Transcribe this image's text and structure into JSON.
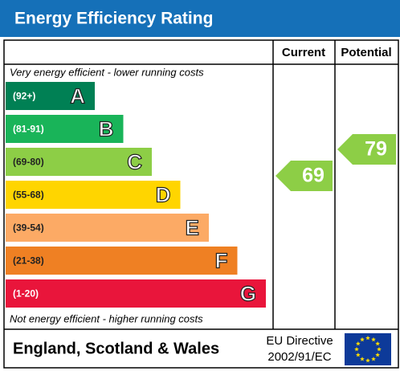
{
  "header": {
    "title": "Energy Efficiency Rating"
  },
  "columns": [
    "Current",
    "Potential"
  ],
  "top_note": "Very energy efficient - lower running costs",
  "bottom_note": "Not energy efficient - higher running costs",
  "bands": [
    {
      "range": "(92+)",
      "letter": "A"
    },
    {
      "range": "(81-91)",
      "letter": "B"
    },
    {
      "range": "(69-80)",
      "letter": "C"
    },
    {
      "range": "(55-68)",
      "letter": "D"
    },
    {
      "range": "(39-54)",
      "letter": "E"
    },
    {
      "range": "(21-38)",
      "letter": "F"
    },
    {
      "range": "(1-20)",
      "letter": "G"
    }
  ],
  "current": {
    "value": 69
  },
  "potential": {
    "value": 79
  },
  "footer": {
    "region": "England, Scotland & Wales",
    "directive": [
      "EU Directive",
      "2002/91/EC"
    ]
  }
}
